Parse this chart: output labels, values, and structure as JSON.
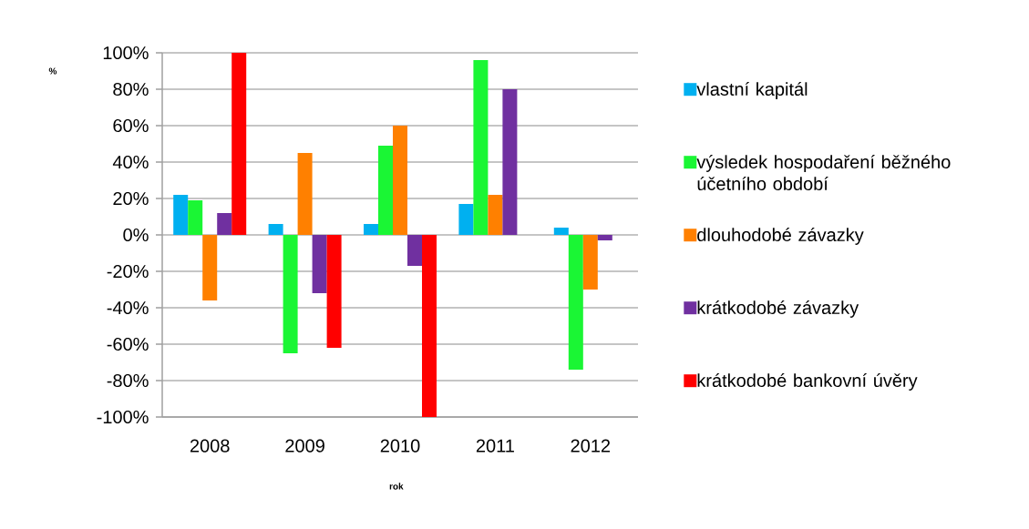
{
  "chart_data": {
    "type": "bar",
    "xlabel": "rok",
    "ylabel": "%",
    "categories": [
      "2008",
      "2009",
      "2010",
      "2011",
      "2012"
    ],
    "series": [
      {
        "name": "vlastní kapitál",
        "color": "#00b0f0",
        "values": [
          22,
          6,
          6,
          17,
          4
        ]
      },
      {
        "name": "výsledek hospodaření běžného účetního období",
        "color": "#1af634",
        "values": [
          19,
          -65,
          49,
          96,
          -74
        ]
      },
      {
        "name": "dlouhodobé závazky",
        "color": "#ff8000",
        "values": [
          -36,
          45,
          60,
          22,
          -30
        ]
      },
      {
        "name": "krátkodobé závazky",
        "color": "#7030a0",
        "values": [
          12,
          -32,
          -17,
          80,
          -3
        ]
      },
      {
        "name": "krátkodobé bankovní úvěry",
        "color": "#ff0000",
        "values": [
          100,
          -62,
          -100,
          0,
          0
        ]
      }
    ],
    "ylim": [
      -100,
      100
    ],
    "yticks": [
      {
        "value": -100,
        "label": "-100%"
      },
      {
        "value": -80,
        "label": "-80%"
      },
      {
        "value": -60,
        "label": "-60%"
      },
      {
        "value": -40,
        "label": "-40%"
      },
      {
        "value": -20,
        "label": "-20%"
      },
      {
        "value": 0,
        "label": "0%"
      },
      {
        "value": 20,
        "label": "20%"
      },
      {
        "value": 40,
        "label": "40%"
      },
      {
        "value": 60,
        "label": "60%"
      },
      {
        "value": 80,
        "label": "80%"
      },
      {
        "value": 100,
        "label": "100%"
      }
    ],
    "grid": "y",
    "legend": "right"
  }
}
